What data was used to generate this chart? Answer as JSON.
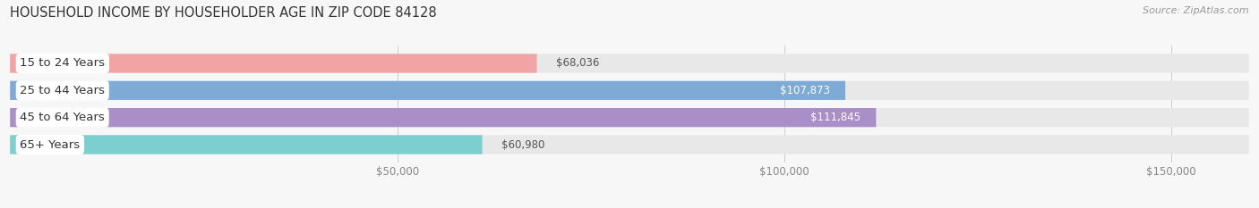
{
  "title": "HOUSEHOLD INCOME BY HOUSEHOLDER AGE IN ZIP CODE 84128",
  "source": "Source: ZipAtlas.com",
  "categories": [
    "15 to 24 Years",
    "25 to 44 Years",
    "45 to 64 Years",
    "65+ Years"
  ],
  "values": [
    68036,
    107873,
    111845,
    60980
  ],
  "bar_colors": [
    "#f2a3a3",
    "#7eaad6",
    "#aa8ec8",
    "#7dcfcf"
  ],
  "background_color": "#f7f7f7",
  "bar_bg_color": "#e8e8e8",
  "xlim": [
    0,
    160000
  ],
  "xticks": [
    50000,
    100000,
    150000
  ],
  "xtick_labels": [
    "$50,000",
    "$100,000",
    "$150,000"
  ],
  "bar_height": 0.7,
  "title_fontsize": 10.5,
  "label_fontsize": 9.5,
  "value_fontsize": 8.5,
  "source_fontsize": 8,
  "value_inside_color": "#ffffff",
  "value_outside_color": "#555555",
  "inside_threshold": 80000,
  "label_text_color": "#333333",
  "tick_color": "#888888"
}
